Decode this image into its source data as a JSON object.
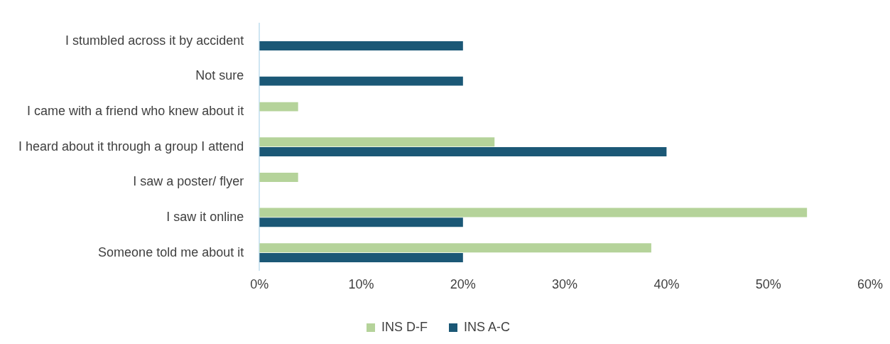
{
  "chart_data": {
    "type": "bar",
    "orientation": "horizontal",
    "categories": [
      "I stumbled across it by accident",
      "Not sure",
      "I came with a friend who knew about it",
      "I heard about it through a group I attend",
      "I saw a poster/ flyer",
      "I saw it online",
      "Someone told me about it"
    ],
    "series": [
      {
        "name": "INS D-F",
        "color": "#b5d39a",
        "values": [
          null,
          null,
          3.8,
          23.1,
          3.8,
          53.8,
          38.5
        ]
      },
      {
        "name": "INS A-C",
        "color": "#1b5876",
        "values": [
          20,
          20,
          null,
          40,
          null,
          20,
          20
        ]
      }
    ],
    "xlim": [
      0,
      60
    ],
    "xticks": [
      {
        "value": 0,
        "label": "0%"
      },
      {
        "value": 10,
        "label": "10%"
      },
      {
        "value": 20,
        "label": "20%"
      },
      {
        "value": 30,
        "label": "30%"
      },
      {
        "value": 40,
        "label": "40%"
      },
      {
        "value": 50,
        "label": "50%"
      },
      {
        "value": 60,
        "label": "60%"
      }
    ],
    "grid": false,
    "legend": "bottom"
  }
}
